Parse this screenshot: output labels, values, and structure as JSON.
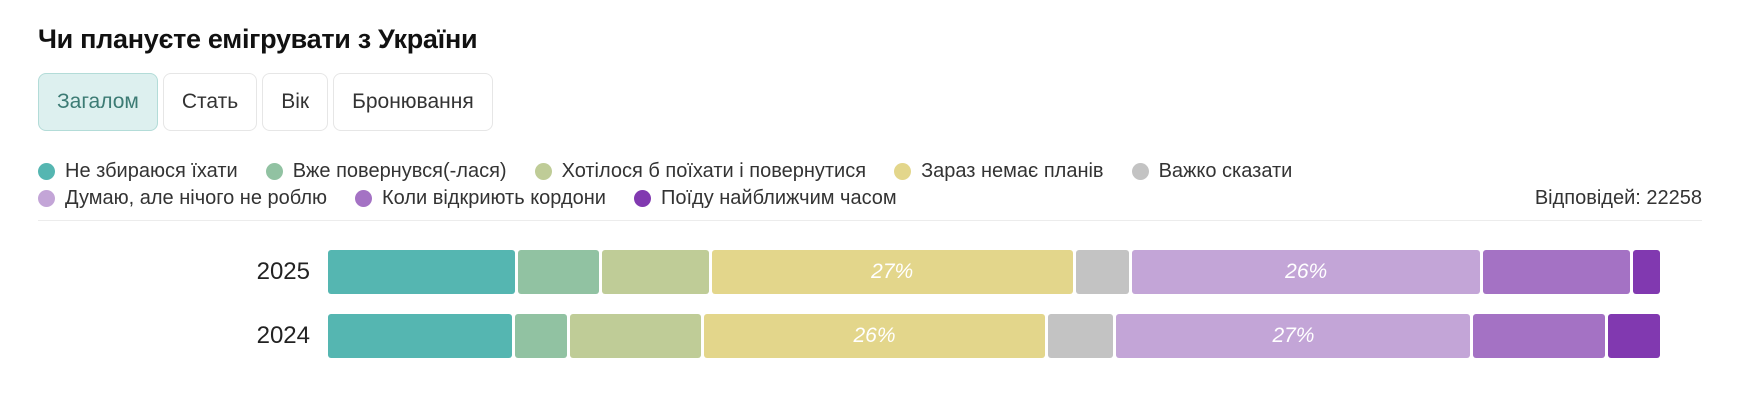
{
  "title": "Чи плануєте емігрувати з України",
  "tabs": [
    {
      "label": "Загалом",
      "active": true
    },
    {
      "label": "Стать"
    },
    {
      "label": "Вік"
    },
    {
      "label": "Бронювання"
    }
  ],
  "responses": "Відповідей: 22258",
  "chart_data": {
    "type": "bar",
    "orientation": "horizontal",
    "stacked": true,
    "normalized": true,
    "title": "Чи плануєте емігрувати з України",
    "categories": [
      "2025",
      "2024"
    ],
    "series": [
      {
        "name": "Не збираюся їхати",
        "color": "#55b6b1",
        "values": [
          14,
          14
        ]
      },
      {
        "name": "Вже повернувся(-лася)",
        "color": "#91c2a2",
        "values": [
          6,
          4
        ]
      },
      {
        "name": "Хотілося б поїхати і повернутися",
        "color": "#bfcc97",
        "values": [
          8,
          10
        ]
      },
      {
        "name": "Зараз немає планів",
        "color": "#e3d68b",
        "values": [
          27,
          26
        ]
      },
      {
        "name": "Важко сказати",
        "color": "#c3c3c3",
        "values": [
          4,
          5
        ]
      },
      {
        "name": "Думаю, але нічого не роблю",
        "color": "#c3a5d7",
        "values": [
          26,
          27
        ]
      },
      {
        "name": "Коли відкриють кордони",
        "color": "#a472c4",
        "values": [
          11,
          10
        ]
      },
      {
        "name": "Поїду найближчим часом",
        "color": "#8139b0",
        "values": [
          2,
          4
        ]
      }
    ],
    "value_labels": {
      "2025": {
        "3": "27%",
        "5": "26%"
      },
      "2024": {
        "3": "26%",
        "5": "27%"
      }
    },
    "legend_position": "top"
  }
}
